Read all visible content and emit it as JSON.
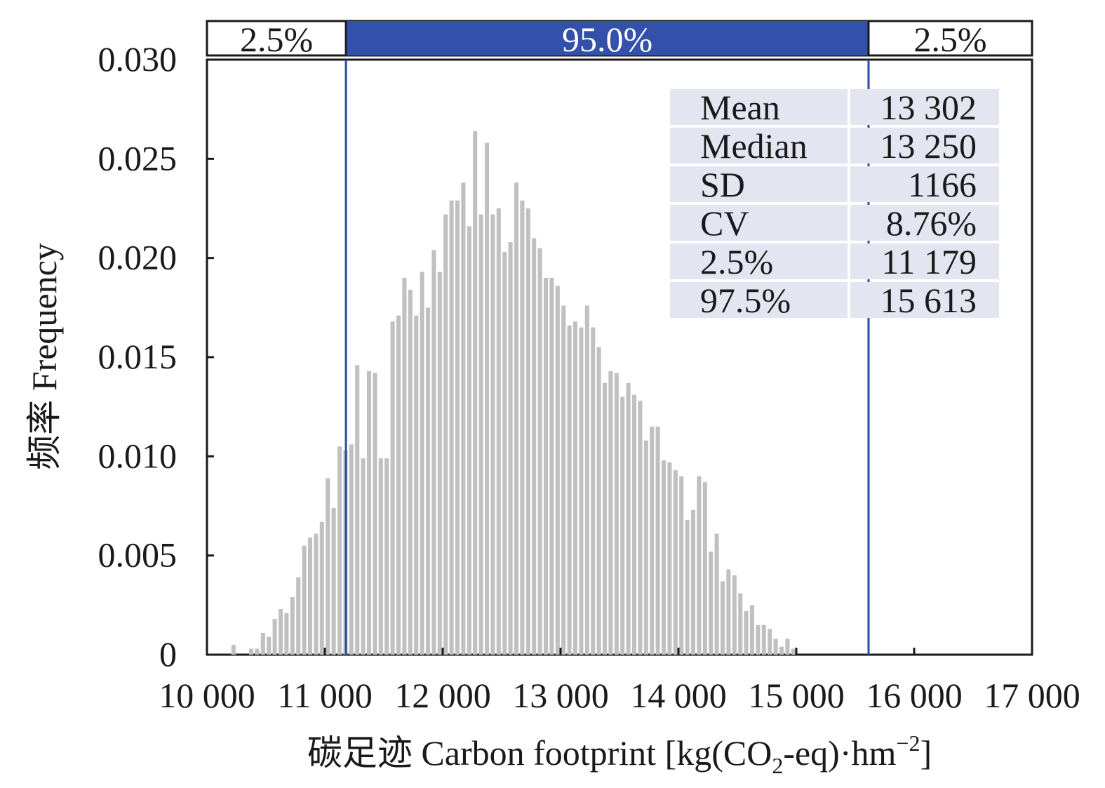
{
  "chart_data": {
    "type": "bar",
    "title": "",
    "xlabel": "碳足迹 Carbon footprint [kg(CO2-eq)·hm−2]",
    "xlabel_parts": {
      "main": "碳足迹 Carbon footprint [kg(CO",
      "sub1": "2",
      "mid": "-eq)·hm",
      "sup": "−2",
      "end": "]"
    },
    "ylabel": "频率 Frequency",
    "xlim": [
      10000,
      17000
    ],
    "ylim": [
      0,
      0.03
    ],
    "x_ticks": [
      10000,
      11000,
      12000,
      13000,
      14000,
      15000,
      16000,
      17000
    ],
    "x_tick_labels": [
      "10 000",
      "11 000",
      "12 000",
      "13 000",
      "14 000",
      "15 000",
      "16 000",
      "17 000"
    ],
    "y_ticks": [
      0,
      0.005,
      0.01,
      0.015,
      0.02,
      0.025,
      0.03
    ],
    "y_tick_labels": [
      "0",
      "0.005",
      "0.010",
      "0.015",
      "0.020",
      "0.025",
      "0.030"
    ],
    "bin_start": 10200,
    "bin_width": 50,
    "values": [
      0.0005,
      0,
      0,
      0.0003,
      0.0003,
      0.0011,
      0.0009,
      0.0018,
      0.0023,
      0.0021,
      0.0029,
      0.0039,
      0.0055,
      0.0059,
      0.0061,
      0.0067,
      0.0089,
      0.0074,
      0.0105,
      0.0103,
      0.0106,
      0.0146,
      0.0099,
      0.0143,
      0.0142,
      0.0099,
      0.0099,
      0.0168,
      0.0171,
      0.019,
      0.0184,
      0.0171,
      0.0193,
      0.0175,
      0.0204,
      0.0193,
      0.0222,
      0.0229,
      0.0229,
      0.0238,
      0.0216,
      0.0264,
      0.0222,
      0.0258,
      0.0222,
      0.0225,
      0.0203,
      0.0208,
      0.0238,
      0.0229,
      0.0225,
      0.021,
      0.0205,
      0.019,
      0.019,
      0.0186,
      0.0176,
      0.0166,
      0.0168,
      0.0165,
      0.0176,
      0.0165,
      0.0155,
      0.0137,
      0.0143,
      0.0142,
      0.013,
      0.0137,
      0.0131,
      0.0128,
      0.0108,
      0.0115,
      0.0115,
      0.0098,
      0.0097,
      0.0093,
      0.009,
      0.0068,
      0.0073,
      0.009,
      0.0087,
      0.0052,
      0.0061,
      0.0037,
      0.0043,
      0.004,
      0.0031,
      0.0022,
      0.0025,
      0.0015,
      0.0015,
      0.0013,
      0.0008,
      0.0004,
      0.0008,
      0.0003
    ],
    "intervals": {
      "lower_bound": 11179,
      "upper_bound": 15613,
      "lower_label": "2.5%",
      "middle_label": "95.0%",
      "upper_label": "2.5%",
      "band_color": "#3350aa",
      "line_color": "#2f4d9e"
    },
    "bar_color": "#c0c0c0",
    "statistics": [
      {
        "name": "Mean",
        "value": "13 302"
      },
      {
        "name": "Median",
        "value": "13 250"
      },
      {
        "name": "SD",
        "value": "1166"
      },
      {
        "name": "CV",
        "value": "8.76%"
      },
      {
        "name": "2.5%",
        "value": "11 179"
      },
      {
        "name": "97.5%",
        "value": "15 613"
      }
    ],
    "stats_bg_color": "#e3e5f1",
    "legend_position": "top-right"
  }
}
